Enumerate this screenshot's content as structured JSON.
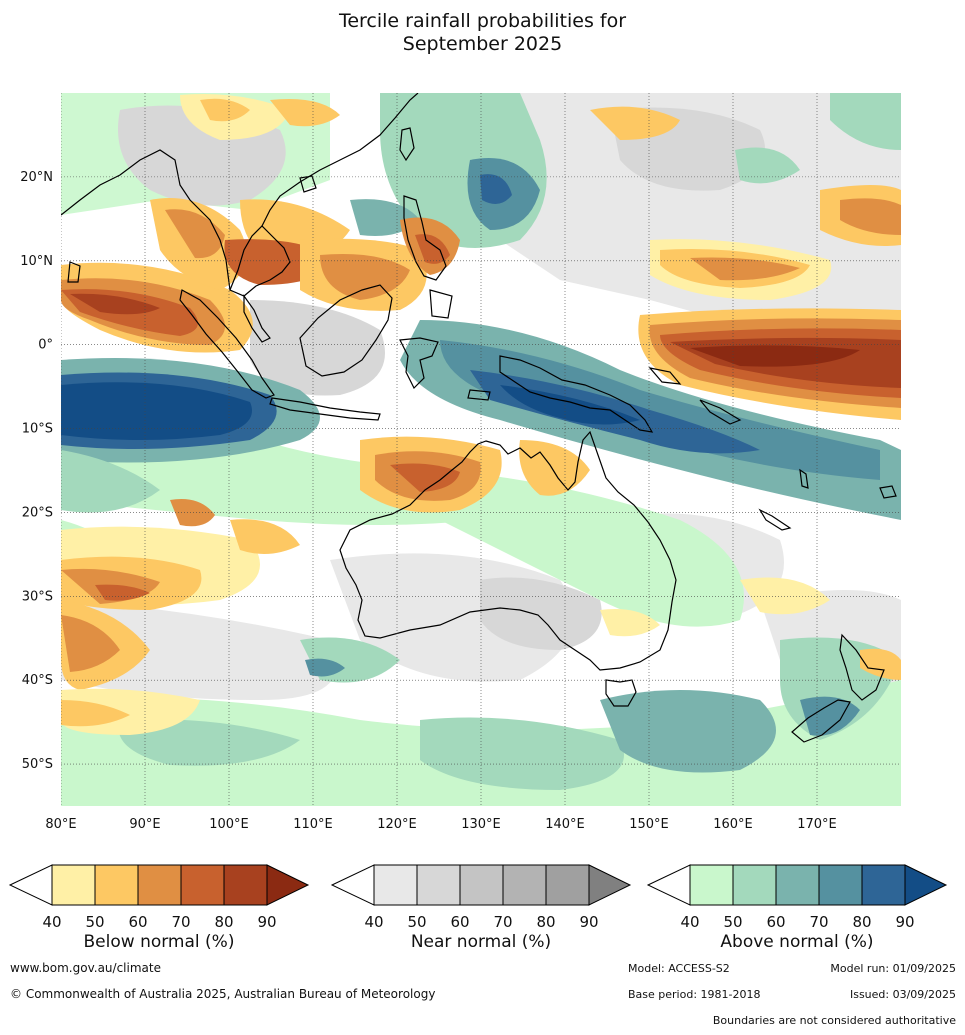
{
  "title_line1": "Tercile rainfall probabilities for",
  "title_line2": "September 2025",
  "map": {
    "lon_range": [
      80,
      180
    ],
    "lat_range": [
      -55,
      30
    ],
    "lon_ticks": [
      80,
      90,
      100,
      110,
      120,
      130,
      140,
      150,
      160,
      170
    ],
    "lon_labels": [
      "80°E",
      "90°E",
      "100°E",
      "110°E",
      "120°E",
      "130°E",
      "140°E",
      "150°E",
      "160°E",
      "170°E"
    ],
    "lat_ticks": [
      20,
      10,
      0,
      -10,
      -20,
      -30,
      -40,
      -50
    ],
    "lat_labels": [
      "20°N",
      "10°N",
      "0°",
      "10°S",
      "20°S",
      "30°S",
      "40°S",
      "50°S"
    ],
    "gridlines": true,
    "colors": {
      "below": [
        "#fff0a6",
        "#fdc863",
        "#e08f43",
        "#c8612e",
        "#a8411f",
        "#8b2a12"
      ],
      "near": [
        "#e8e8e8",
        "#d7d7d7",
        "#c4c4c4",
        "#b3b3b3",
        "#a0a0a0",
        "#808080"
      ],
      "above": [
        "#c9f7cc",
        "#a3d9bc",
        "#7ab3ad",
        "#5591a0",
        "#2e6596",
        "#134d86"
      ]
    }
  },
  "legends": [
    {
      "title": "Below normal (%)",
      "ticks": [
        "40",
        "50",
        "60",
        "70",
        "80",
        "90"
      ]
    },
    {
      "title": "Near normal (%)",
      "ticks": [
        "40",
        "50",
        "60",
        "70",
        "80",
        "90"
      ]
    },
    {
      "title": "Above normal (%)",
      "ticks": [
        "40",
        "50",
        "60",
        "70",
        "80",
        "90"
      ]
    }
  ],
  "footer": {
    "website": "www.bom.gov.au/climate",
    "copyright": "© Commonwealth of Australia 2025, Australian Bureau of Meteorology",
    "model": "Model: ACCESS-S2",
    "model_run": "Model run: 01/09/2025",
    "base_period": "Base period: 1981-2018",
    "issued": "Issued: 03/09/2025",
    "disclaimer": "Boundaries are not considered authoritative"
  }
}
